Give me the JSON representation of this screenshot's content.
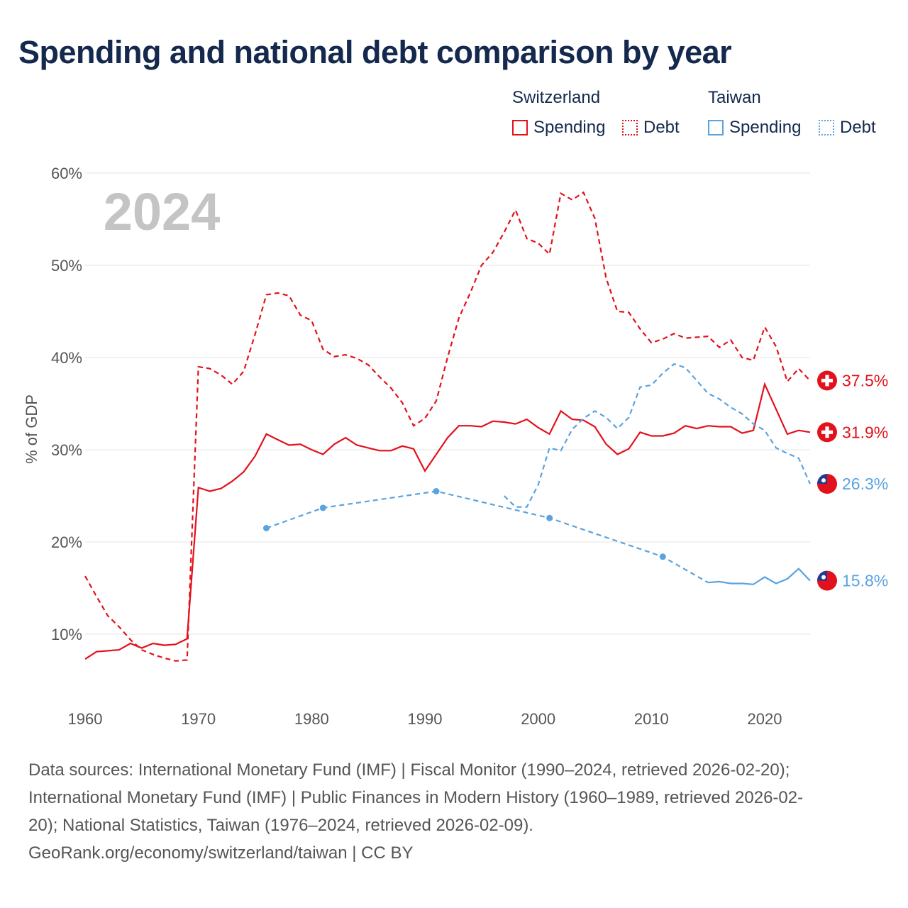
{
  "title": "Spending and national debt comparison by year",
  "legend": {
    "groups": [
      {
        "name": "Switzerland",
        "color": "#e3111b",
        "items": [
          {
            "label": "Spending",
            "style": "solid"
          },
          {
            "label": "Debt",
            "style": "dotted"
          }
        ]
      },
      {
        "name": "Taiwan",
        "color": "#5aa3e0",
        "items": [
          {
            "label": "Spending",
            "style": "solid"
          },
          {
            "label": "Debt",
            "style": "dotted"
          }
        ]
      }
    ]
  },
  "chart_data": {
    "type": "line",
    "title": "Spending and national debt comparison by year",
    "ylabel": "% of GDP",
    "xlabel": "",
    "year_watermark": "2024",
    "xlim": [
      1960,
      2024
    ],
    "ylim": [
      3,
      60
    ],
    "x_ticks": [
      1960,
      1970,
      1980,
      1990,
      2000,
      2010,
      2020
    ],
    "y_ticks": [
      10,
      20,
      30,
      40,
      50,
      60
    ],
    "y_tick_suffix": "%",
    "grid": true,
    "series": [
      {
        "name": "Switzerland Debt",
        "country": "Switzerland",
        "metric": "Debt",
        "color": "#e3111b",
        "dash": "dashed",
        "end_label": "37.5%",
        "points": [
          [
            1960,
            16.3
          ],
          [
            1961,
            14.1
          ],
          [
            1962,
            12.0
          ],
          [
            1963,
            10.8
          ],
          [
            1964,
            9.4
          ],
          [
            1965,
            8.3
          ],
          [
            1966,
            7.8
          ],
          [
            1967,
            7.4
          ],
          [
            1968,
            7.1
          ],
          [
            1969,
            7.2
          ],
          [
            1970,
            39.0
          ],
          [
            1971,
            38.8
          ],
          [
            1972,
            38.1
          ],
          [
            1973,
            37.1
          ],
          [
            1974,
            38.5
          ],
          [
            1975,
            42.5
          ],
          [
            1976,
            46.8
          ],
          [
            1977,
            47.0
          ],
          [
            1978,
            46.7
          ],
          [
            1979,
            44.6
          ],
          [
            1980,
            44.0
          ],
          [
            1981,
            40.9
          ],
          [
            1982,
            40.1
          ],
          [
            1983,
            40.3
          ],
          [
            1984,
            39.9
          ],
          [
            1985,
            39.2
          ],
          [
            1986,
            37.9
          ],
          [
            1987,
            36.7
          ],
          [
            1988,
            35.1
          ],
          [
            1989,
            32.6
          ],
          [
            1990,
            33.4
          ],
          [
            1991,
            35.3
          ],
          [
            1992,
            40.0
          ],
          [
            1993,
            44.3
          ],
          [
            1994,
            47.0
          ],
          [
            1995,
            50.0
          ],
          [
            1996,
            51.4
          ],
          [
            1997,
            53.6
          ],
          [
            1998,
            56.0
          ],
          [
            1999,
            52.9
          ],
          [
            2000,
            52.4
          ],
          [
            2001,
            51.2
          ],
          [
            2002,
            57.8
          ],
          [
            2003,
            57.1
          ],
          [
            2004,
            57.9
          ],
          [
            2005,
            55.1
          ],
          [
            2006,
            48.6
          ],
          [
            2007,
            45.0
          ],
          [
            2008,
            44.9
          ],
          [
            2009,
            43.1
          ],
          [
            2010,
            41.6
          ],
          [
            2011,
            42.0
          ],
          [
            2012,
            42.6
          ],
          [
            2013,
            42.1
          ],
          [
            2014,
            42.2
          ],
          [
            2015,
            42.3
          ],
          [
            2016,
            41.1
          ],
          [
            2017,
            41.9
          ],
          [
            2018,
            40.0
          ],
          [
            2019,
            39.7
          ],
          [
            2020,
            43.3
          ],
          [
            2021,
            41.2
          ],
          [
            2022,
            37.4
          ],
          [
            2023,
            38.8
          ],
          [
            2024,
            37.5
          ]
        ]
      },
      {
        "name": "Switzerland Spending",
        "country": "Switzerland",
        "metric": "Spending",
        "color": "#e3111b",
        "dash": "solid",
        "end_label": "31.9%",
        "points": [
          [
            1960,
            7.3
          ],
          [
            1961,
            8.1
          ],
          [
            1962,
            8.2
          ],
          [
            1963,
            8.3
          ],
          [
            1964,
            9.0
          ],
          [
            1965,
            8.5
          ],
          [
            1966,
            9.0
          ],
          [
            1967,
            8.8
          ],
          [
            1968,
            8.9
          ],
          [
            1969,
            9.5
          ],
          [
            1970,
            25.9
          ],
          [
            1971,
            25.5
          ],
          [
            1972,
            25.8
          ],
          [
            1973,
            26.6
          ],
          [
            1974,
            27.6
          ],
          [
            1975,
            29.3
          ],
          [
            1976,
            31.7
          ],
          [
            1977,
            31.1
          ],
          [
            1978,
            30.5
          ],
          [
            1979,
            30.6
          ],
          [
            1980,
            30.0
          ],
          [
            1981,
            29.5
          ],
          [
            1982,
            30.6
          ],
          [
            1983,
            31.3
          ],
          [
            1984,
            30.5
          ],
          [
            1985,
            30.2
          ],
          [
            1986,
            29.9
          ],
          [
            1987,
            29.9
          ],
          [
            1988,
            30.4
          ],
          [
            1989,
            30.1
          ],
          [
            1990,
            27.7
          ],
          [
            1991,
            29.5
          ],
          [
            1992,
            31.3
          ],
          [
            1993,
            32.6
          ],
          [
            1994,
            32.6
          ],
          [
            1995,
            32.5
          ],
          [
            1996,
            33.1
          ],
          [
            1997,
            33.0
          ],
          [
            1998,
            32.8
          ],
          [
            1999,
            33.3
          ],
          [
            2000,
            32.4
          ],
          [
            2001,
            31.7
          ],
          [
            2002,
            34.2
          ],
          [
            2003,
            33.3
          ],
          [
            2004,
            33.2
          ],
          [
            2005,
            32.5
          ],
          [
            2006,
            30.6
          ],
          [
            2007,
            29.5
          ],
          [
            2008,
            30.1
          ],
          [
            2009,
            31.9
          ],
          [
            2010,
            31.5
          ],
          [
            2011,
            31.5
          ],
          [
            2012,
            31.8
          ],
          [
            2013,
            32.6
          ],
          [
            2014,
            32.3
          ],
          [
            2015,
            32.6
          ],
          [
            2016,
            32.5
          ],
          [
            2017,
            32.5
          ],
          [
            2018,
            31.8
          ],
          [
            2019,
            32.1
          ],
          [
            2020,
            37.1
          ],
          [
            2021,
            34.4
          ],
          [
            2022,
            31.7
          ],
          [
            2023,
            32.1
          ],
          [
            2024,
            31.9
          ]
        ]
      },
      {
        "name": "Taiwan Debt",
        "country": "Taiwan",
        "metric": "Debt",
        "color": "#5aa3e0",
        "dash": "dashed",
        "end_label": "26.3%",
        "points": [
          [
            1997,
            25.0
          ],
          [
            1998,
            23.8
          ],
          [
            1999,
            23.8
          ],
          [
            2000,
            26.2
          ],
          [
            2001,
            30.2
          ],
          [
            2002,
            29.9
          ],
          [
            2003,
            32.2
          ],
          [
            2004,
            33.4
          ],
          [
            2005,
            34.2
          ],
          [
            2006,
            33.5
          ],
          [
            2007,
            32.3
          ],
          [
            2008,
            33.5
          ],
          [
            2009,
            36.8
          ],
          [
            2010,
            37.0
          ],
          [
            2011,
            38.3
          ],
          [
            2012,
            39.3
          ],
          [
            2013,
            38.9
          ],
          [
            2014,
            37.5
          ],
          [
            2015,
            36.1
          ],
          [
            2016,
            35.5
          ],
          [
            2017,
            34.6
          ],
          [
            2018,
            33.9
          ],
          [
            2019,
            32.8
          ],
          [
            2020,
            32.1
          ],
          [
            2021,
            30.2
          ],
          [
            2022,
            29.6
          ],
          [
            2023,
            29.1
          ],
          [
            2024,
            26.3
          ]
        ]
      },
      {
        "name": "Taiwan Spending",
        "country": "Taiwan",
        "metric": "Spending",
        "color": "#5aa3e0",
        "dash": "dashed-then-solid",
        "end_label": "15.8%",
        "markers": [
          1976,
          1981,
          1991,
          2001,
          2011
        ],
        "dashed_until": 2015,
        "points": [
          [
            1976,
            21.5
          ],
          [
            1981,
            23.7
          ],
          [
            1991,
            25.5
          ],
          [
            2001,
            22.6
          ],
          [
            2011,
            18.4
          ],
          [
            2015,
            15.6
          ],
          [
            2016,
            15.7
          ],
          [
            2017,
            15.5
          ],
          [
            2018,
            15.5
          ],
          [
            2019,
            15.4
          ],
          [
            2020,
            16.2
          ],
          [
            2021,
            15.5
          ],
          [
            2022,
            16.0
          ],
          [
            2023,
            17.1
          ],
          [
            2024,
            15.8
          ]
        ]
      }
    ]
  },
  "footer": {
    "line1": "Data sources: International Monetary Fund (IMF) | Fiscal Monitor (1990–2024, retrieved 2026-02-20);",
    "line2": "International Monetary Fund (IMF) | Public Finances in Modern History (1960–1989, retrieved 2026-02-",
    "line3": "20); National Statistics, Taiwan (1976–2024, retrieved 2026-02-09).",
    "line4": "GeoRank.org/economy/switzerland/taiwan | CC BY"
  }
}
